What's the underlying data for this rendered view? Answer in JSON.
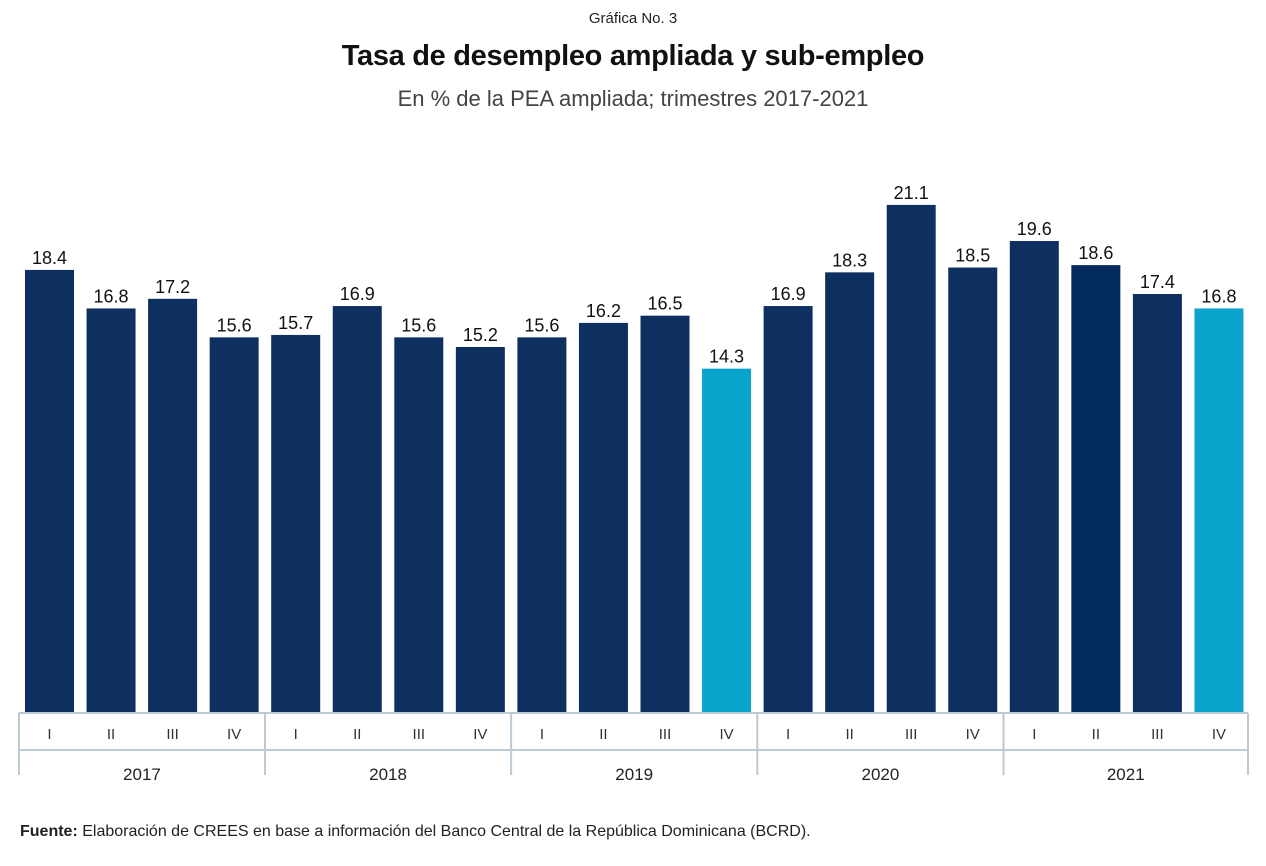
{
  "header": {
    "kicker": "Gráfica No.  3",
    "title": "Tasa de desempleo ampliada y sub-empleo",
    "subtitle": "En % de la PEA ampliada; trimestres 2017-2021"
  },
  "footer": {
    "source_label": "Fuente:",
    "source_text": " Elaboración de CREES en base a información del Banco Central de la República Dominicana (BCRD)."
  },
  "chart_data": {
    "type": "bar",
    "title": "Tasa de desempleo ampliada y sub-empleo",
    "subtitle": "En % de la PEA ampliada; trimestres 2017-2021",
    "xlabel": "",
    "ylabel": "",
    "ylim": [
      0,
      21.1
    ],
    "grid": false,
    "legend": "none",
    "groups": [
      "2017",
      "2018",
      "2019",
      "2020",
      "2021"
    ],
    "categories": [
      "I",
      "II",
      "III",
      "IV",
      "I",
      "II",
      "III",
      "IV",
      "I",
      "II",
      "III",
      "IV",
      "I",
      "II",
      "III",
      "IV",
      "I",
      "II",
      "III",
      "IV"
    ],
    "group_of": [
      "2017",
      "2017",
      "2017",
      "2017",
      "2018",
      "2018",
      "2018",
      "2018",
      "2019",
      "2019",
      "2019",
      "2019",
      "2020",
      "2020",
      "2020",
      "2020",
      "2021",
      "2021",
      "2021",
      "2021"
    ],
    "values": [
      18.4,
      16.8,
      17.2,
      15.6,
      15.7,
      16.9,
      15.6,
      15.2,
      15.6,
      16.2,
      16.5,
      14.3,
      16.9,
      18.3,
      21.1,
      18.5,
      19.6,
      18.6,
      17.4,
      16.8
    ],
    "value_labels": [
      "18.4",
      "16.8",
      "17.2",
      "15.6",
      "15.7",
      "16.9",
      "15.6",
      "15.2",
      "15.6",
      "16.2",
      "16.5",
      "14.3",
      "16.9",
      "18.3",
      "21.1",
      "18.5",
      "19.6",
      "18.6",
      "17.4",
      "16.8"
    ],
    "colors": {
      "default": "#0d3060",
      "highlight": "#0aa3cc",
      "dark": "#022a5c",
      "axis": "#bccad3"
    },
    "bar_color_keys": [
      "default",
      "default",
      "default",
      "default",
      "default",
      "default",
      "default",
      "default",
      "default",
      "default",
      "default",
      "highlight",
      "default",
      "default",
      "default",
      "default",
      "default",
      "dark",
      "default",
      "highlight"
    ]
  }
}
